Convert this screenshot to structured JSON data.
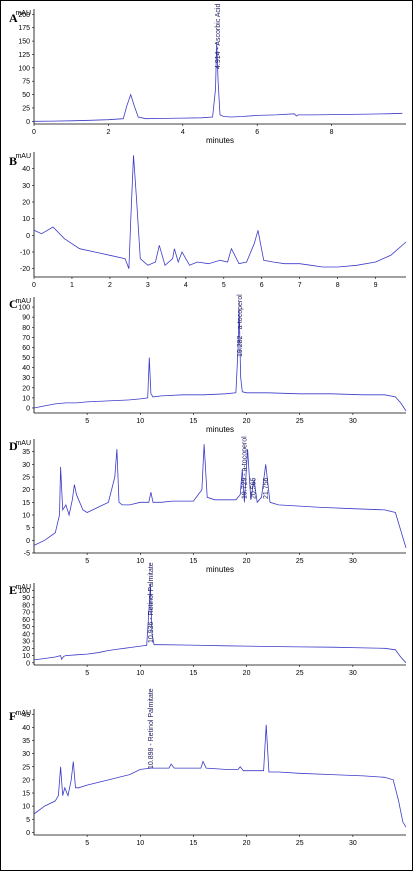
{
  "chart_data": [
    {
      "type": "line",
      "panel": "A",
      "xlabel": "minutes",
      "ylabel": "mAU",
      "xlim": [
        0,
        10
      ],
      "ylim": [
        -5,
        210
      ],
      "xticks": [
        0,
        2,
        4,
        6,
        8
      ],
      "yticks": [
        0,
        25,
        50,
        75,
        100,
        125,
        150,
        175,
        200
      ],
      "series": [
        {
          "x": [
            0,
            0.5,
            1,
            1.5,
            2,
            2.4,
            2.5,
            2.6,
            2.7,
            2.8,
            3,
            3.5,
            4,
            4.5,
            4.8,
            4.88,
            4.91,
            4.95,
            5.0,
            5.1,
            5.3,
            5.6,
            6,
            6.5,
            7,
            7.05,
            7.1,
            7.5,
            8,
            8.5,
            9,
            9.5,
            9.9
          ],
          "y": [
            0,
            0.5,
            1,
            2,
            3,
            5,
            30,
            50,
            28,
            8,
            5,
            5.5,
            6,
            6.5,
            8,
            60,
            148,
            75,
            12,
            9,
            8,
            9,
            11,
            12,
            14,
            10,
            12,
            12,
            12.5,
            13,
            13.5,
            14,
            15
          ]
        }
      ],
      "peak_labels": [
        {
          "x": 4.914,
          "text": "4.914 - Ascorbic Acid"
        }
      ]
    },
    {
      "type": "line",
      "panel": "B",
      "xlabel": "",
      "ylabel": "mAU",
      "xlim": [
        0,
        9.8
      ],
      "ylim": [
        -25,
        50
      ],
      "xticks": [
        0,
        1,
        2,
        3,
        4,
        5,
        6,
        7,
        8,
        9
      ],
      "yticks": [
        -20,
        -10,
        0,
        10,
        20,
        30,
        40
      ],
      "series": [
        {
          "x": [
            0,
            0.2,
            0.5,
            0.8,
            1.2,
            1.6,
            2.0,
            2.4,
            2.5,
            2.55,
            2.62,
            2.7,
            2.8,
            3.0,
            3.2,
            3.3,
            3.45,
            3.65,
            3.7,
            3.8,
            3.9,
            4.1,
            4.3,
            4.6,
            4.9,
            5.1,
            5.2,
            5.4,
            5.6,
            5.8,
            5.9,
            6.05,
            6.3,
            6.6,
            7.0,
            7.3,
            7.6,
            8.0,
            8.5,
            9.0,
            9.4,
            9.8
          ],
          "y": [
            3,
            1,
            5,
            -2,
            -8,
            -10,
            -12,
            -14,
            -20,
            10,
            48,
            22,
            -14,
            -18,
            -16,
            -6,
            -18,
            -14,
            -8,
            -16,
            -10,
            -18,
            -16,
            -17,
            -15,
            -16,
            -8,
            -17,
            -16,
            -5,
            3,
            -15,
            -16,
            -17,
            -17,
            -18,
            -19,
            -19,
            -18,
            -16,
            -12,
            -4
          ]
        }
      ],
      "peak_labels": []
    },
    {
      "type": "line",
      "panel": "C",
      "xlabel": "minutes",
      "ylabel": "mAU",
      "xlim": [
        0,
        35
      ],
      "ylim": [
        -5,
        110
      ],
      "xticks": [
        5,
        10,
        15,
        20,
        25,
        30
      ],
      "yticks": [
        0,
        10,
        20,
        30,
        40,
        50,
        60,
        70,
        80,
        90,
        100
      ],
      "series": [
        {
          "x": [
            0,
            1,
            2,
            3,
            4,
            5,
            7,
            9,
            10,
            10.7,
            10.85,
            11.0,
            11.2,
            12,
            14,
            16,
            18,
            19.0,
            19.2,
            19.3,
            19.45,
            19.6,
            20,
            22,
            25,
            28,
            31,
            33,
            34,
            34.5,
            35
          ],
          "y": [
            0,
            2,
            4,
            5,
            5,
            6,
            7,
            8,
            9,
            10,
            50,
            14,
            11,
            12,
            13,
            13,
            14,
            15,
            60,
            98,
            30,
            16,
            15,
            15,
            14,
            14,
            13,
            13,
            11,
            5,
            -3
          ]
        }
      ],
      "peak_labels": [
        {
          "x": 19.282,
          "text": "19.282 - a-tocoperol"
        }
      ]
    },
    {
      "type": "line",
      "panel": "D",
      "xlabel": "minutes",
      "ylabel": "mAU",
      "xlim": [
        0,
        35
      ],
      "ylim": [
        -5,
        40
      ],
      "xticks": [
        5,
        10,
        15,
        20,
        25,
        30
      ],
      "yticks": [
        -5,
        0,
        5,
        10,
        15,
        20,
        25,
        30,
        35
      ],
      "series": [
        {
          "x": [
            0,
            1,
            2,
            2.4,
            2.5,
            2.7,
            3.0,
            3.3,
            3.6,
            3.8,
            4.0,
            4.3,
            4.6,
            5,
            6,
            7,
            7.6,
            7.8,
            8.0,
            8.3,
            9,
            10,
            10.8,
            11.0,
            11.2,
            12,
            13,
            14,
            15,
            15.8,
            16.0,
            16.3,
            17,
            18,
            19,
            19.4,
            19.6,
            19.8,
            20.1,
            20.4,
            20.7,
            21.0,
            21.4,
            21.8,
            22.2,
            23,
            25,
            27,
            30,
            33,
            34,
            34.5,
            35
          ],
          "y": [
            -2,
            0,
            3,
            10,
            29,
            12,
            14,
            10,
            16,
            22,
            18,
            15,
            12,
            11,
            13,
            15,
            25,
            36,
            15,
            14,
            14,
            15,
            15,
            19,
            15,
            15,
            15.5,
            15.5,
            15.5,
            20,
            38,
            17,
            16,
            16,
            16,
            18,
            28,
            15,
            36,
            16,
            24,
            15,
            17,
            30,
            15,
            14,
            13.5,
            13,
            12.5,
            12,
            11,
            4,
            -3
          ]
        }
      ],
      "peak_labels": [
        {
          "x": 19.729,
          "text": "19.729 - a-tocoperol"
        },
        {
          "x": 20.565,
          "text": "20.565"
        },
        {
          "x": 21.756,
          "text": "21.756"
        }
      ]
    },
    {
      "type": "line",
      "panel": "E",
      "xlabel": "",
      "ylabel": "mAU",
      "xlim": [
        0,
        35
      ],
      "ylim": [
        -3,
        110
      ],
      "xticks": [
        5,
        10,
        15,
        20,
        25,
        30
      ],
      "yticks": [
        0,
        10,
        20,
        30,
        40,
        50,
        60,
        70,
        80,
        90,
        100
      ],
      "series": [
        {
          "x": [
            0,
            1,
            2,
            2.5,
            2.6,
            2.8,
            3.0,
            4,
            5,
            6,
            7,
            8,
            9,
            10,
            10.6,
            10.8,
            10.95,
            11.1,
            11.3,
            12,
            14,
            16,
            18,
            20,
            22,
            25,
            28,
            31,
            33,
            34,
            34.5,
            35
          ],
          "y": [
            4,
            6,
            8,
            10,
            5,
            9,
            10,
            11,
            12,
            14,
            17,
            19,
            21,
            23,
            24,
            70,
            108,
            40,
            25,
            25,
            24.5,
            24,
            23.5,
            23,
            22.5,
            22,
            21.5,
            20.5,
            20,
            18,
            8,
            0
          ]
        }
      ],
      "peak_labels": [
        {
          "x": 10.936,
          "text": "10.936 - Retinol Palmitate"
        }
      ]
    },
    {
      "type": "line",
      "panel": "F",
      "xlabel": "",
      "ylabel": "mAU",
      "xlim": [
        0,
        35
      ],
      "ylim": [
        -1,
        47
      ],
      "xticks": [
        5,
        10,
        15,
        20,
        25,
        30
      ],
      "yticks": [
        0,
        5,
        10,
        15,
        20,
        25,
        30,
        35,
        40,
        45
      ],
      "series": [
        {
          "x": [
            0,
            1,
            2,
            2.3,
            2.5,
            2.7,
            2.9,
            3.2,
            3.5,
            3.7,
            3.9,
            4.2,
            5,
            7,
            9,
            10,
            11,
            12,
            12.7,
            12.9,
            13.2,
            14,
            15.7,
            15.9,
            16.2,
            18,
            19.2,
            19.4,
            19.7,
            21,
            21.6,
            21.85,
            22.1,
            23,
            25,
            28,
            31,
            33,
            33.8,
            34.3,
            34.7,
            35
          ],
          "y": [
            7,
            10,
            12,
            14,
            25,
            14,
            17,
            14,
            20,
            27,
            17,
            17,
            18,
            20,
            22,
            24,
            24.5,
            24.5,
            24.5,
            26,
            24.5,
            24.5,
            24.5,
            27,
            24.5,
            24,
            24,
            25,
            23.5,
            23.5,
            23.5,
            41,
            23,
            23,
            22.5,
            22,
            21.5,
            21,
            20,
            12,
            4,
            2
          ]
        }
      ],
      "peak_labels": [
        {
          "x": 10.898,
          "text": "10.898 - Retinol Palmitate"
        }
      ]
    }
  ]
}
